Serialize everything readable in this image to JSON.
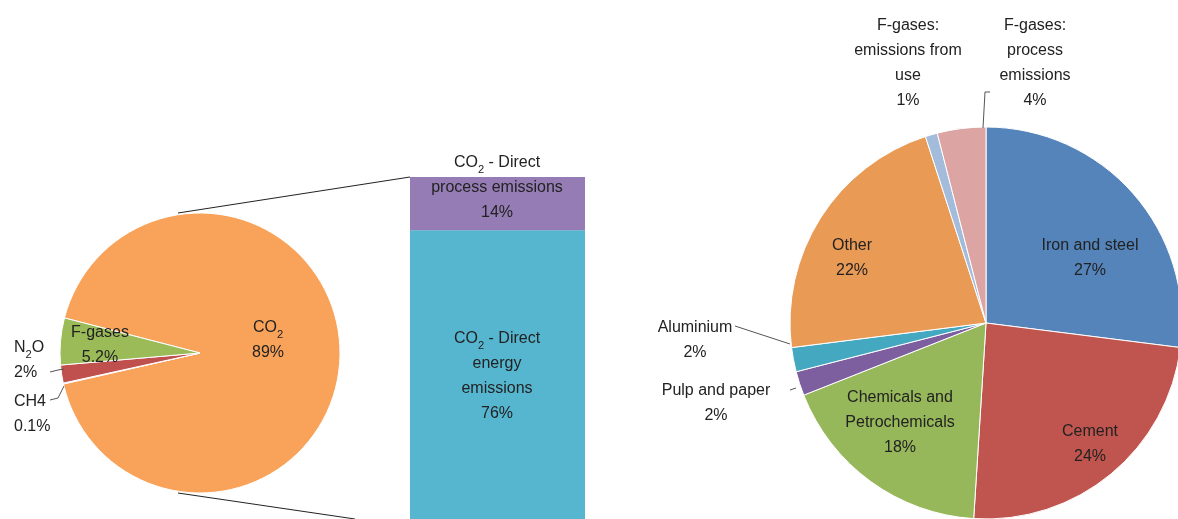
{
  "chart_data": [
    {
      "type": "pie",
      "categories": [
        "CO$_{2}$",
        "CH4",
        "N$_{2}$O",
        "F-gases"
      ],
      "values": [
        89,
        0.1,
        2,
        5.2
      ],
      "colors": [
        "#f9a35a",
        "#a5a5d8",
        "#c0504d",
        "#9bbb59"
      ],
      "value_labels": [
        "89%",
        "0.1%",
        "2%",
        "5.2%"
      ]
    },
    {
      "type": "bar",
      "stacked": true,
      "categories": [
        null
      ],
      "series": [
        {
          "name": "CO$_{2}$ - Direct energy emissions",
          "color": "#56b6d0",
          "values": [
            76
          ],
          "value_labels": [
            "76%"
          ]
        },
        {
          "name": "CO$_{2}$ - Direct process emissions",
          "color": "#957cb4",
          "values": [
            14
          ],
          "value_labels": [
            "14%"
          ]
        }
      ]
    },
    {
      "type": "pie",
      "categories": [
        "Iron and steel",
        "Cement",
        "Chemicals and Petrochemicals",
        "Pulp and paper",
        "Aluminium",
        "Other",
        "F-gases: emissions from use",
        "F-gases: process emissions"
      ],
      "values": [
        27,
        24,
        18,
        2,
        2,
        22,
        1,
        4
      ],
      "colors": [
        "#5484ba",
        "#c0554f",
        "#97b85a",
        "#7d5fa0",
        "#44a8c0",
        "#e99a55",
        "#a3bcdc",
        "#dca4a2"
      ],
      "value_labels": [
        "27%",
        "24%",
        "18%",
        "2%",
        "2%",
        "22%",
        "1%",
        "4%"
      ]
    }
  ]
}
